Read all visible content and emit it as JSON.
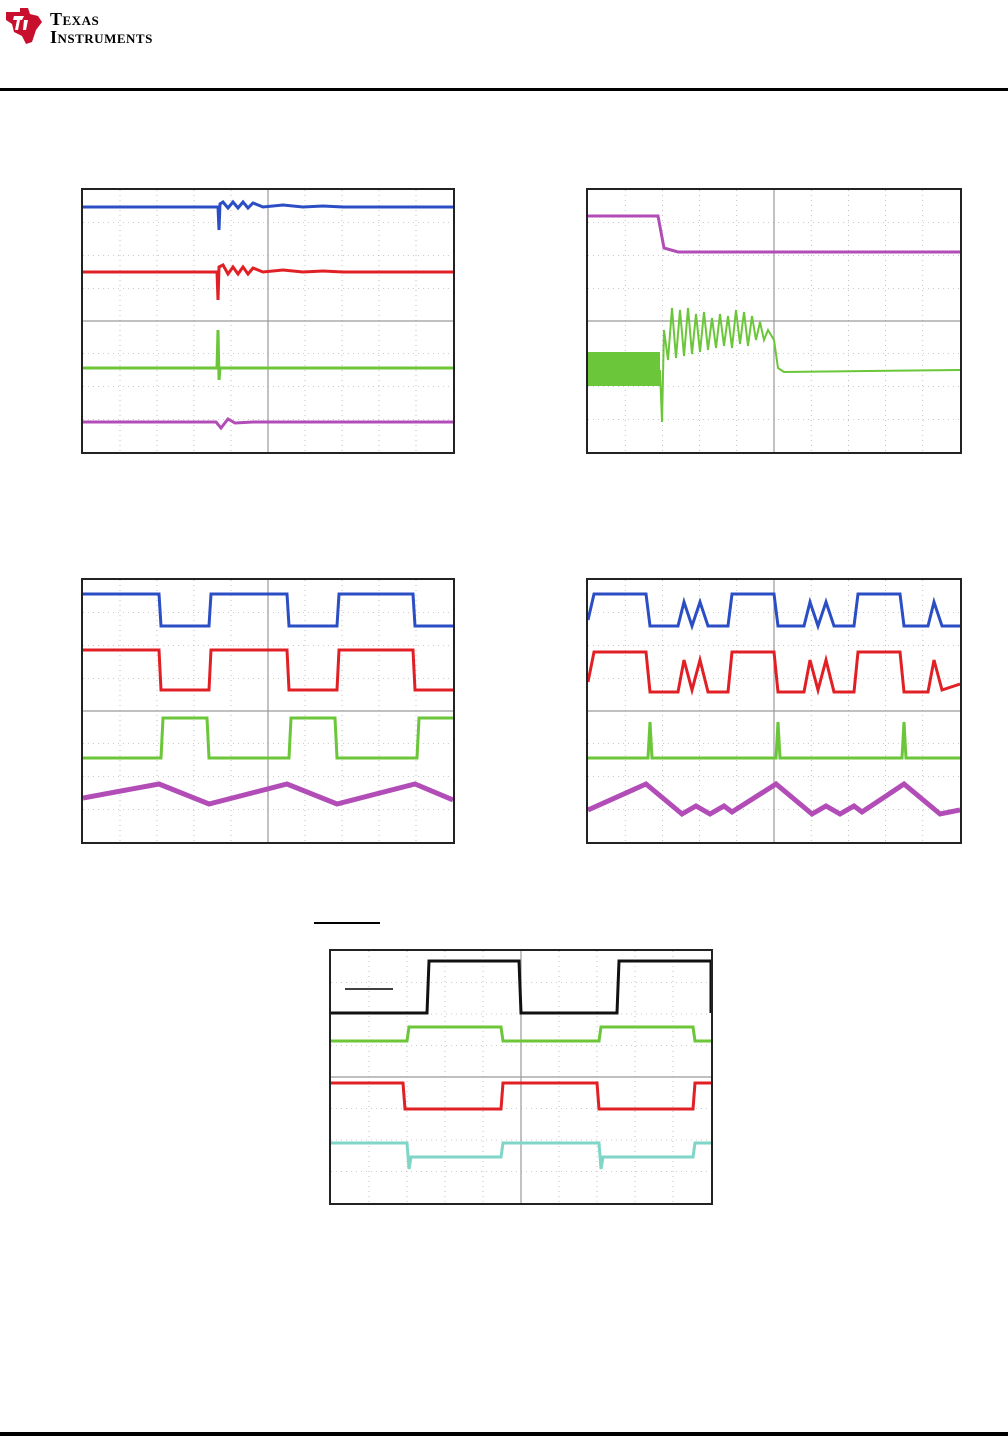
{
  "header": {
    "logo_line1": "Texas",
    "logo_line2": "Instruments",
    "logo_icon": "ti-logo-icon"
  },
  "colors": {
    "blue": "#2b4ec4",
    "red": "#e02025",
    "green": "#6cc63a",
    "magenta": "#b24db8",
    "black": "#111111",
    "cyan": "#7fd6c8",
    "grid": "#9a9a9a"
  },
  "figures": [
    {
      "id": "scope-1",
      "traces": [
        "blue",
        "red",
        "green",
        "magenta"
      ]
    },
    {
      "id": "scope-2",
      "traces": [
        "magenta",
        "green"
      ]
    },
    {
      "id": "scope-3",
      "traces": [
        "blue",
        "red",
        "green",
        "magenta"
      ]
    },
    {
      "id": "scope-4",
      "traces": [
        "blue",
        "red",
        "green",
        "magenta"
      ]
    },
    {
      "id": "scope-5",
      "traces": [
        "black",
        "green",
        "red",
        "cyan"
      ]
    }
  ]
}
